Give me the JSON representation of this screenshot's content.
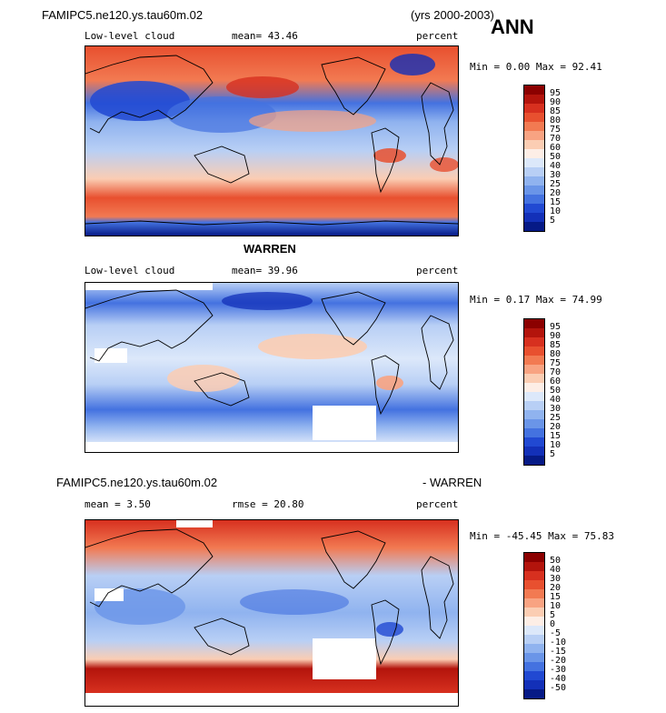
{
  "header": {
    "case_name": "FAMIPC5.ne120.ys.tau60m.02",
    "years": "(yrs 2000-2003)",
    "season": "ANN"
  },
  "panel1": {
    "variable": "Low-level cloud",
    "mean_label": "mean=  43.46",
    "units": "percent",
    "minmax": "Min =   0.00 Max =  92.41"
  },
  "panel2": {
    "title": "WARREN",
    "variable": "Low-level cloud",
    "mean_label": "mean=  39.96",
    "units": "percent",
    "minmax": "Min =   0.17 Max =  74.99"
  },
  "panel3": {
    "title_left": "FAMIPC5.ne120.ys.tau60m.02",
    "title_right": "- WARREN",
    "mean_label": "mean =   3.50",
    "rmse_label": "rmse =  20.80",
    "units": "percent",
    "minmax": "Min = -45.45 Max =  75.83"
  },
  "colorbar_abs": {
    "labels": [
      "95",
      "90",
      "85",
      "80",
      "75",
      "70",
      "60",
      "50",
      "40",
      "30",
      "25",
      "20",
      "15",
      "10",
      "5"
    ],
    "colors": [
      "#8b0000",
      "#b3140c",
      "#d7301f",
      "#e8502f",
      "#f27a52",
      "#f8a382",
      "#fbcdb3",
      "#fdeee6",
      "#dce8fa",
      "#b8cff5",
      "#90b3ef",
      "#6a95e8",
      "#4472e0",
      "#2149d2",
      "#1330b8",
      "#061a86"
    ]
  },
  "colorbar_diff": {
    "labels": [
      "50",
      "40",
      "30",
      "20",
      "15",
      "10",
      "5",
      "0",
      "-5",
      "-10",
      "-15",
      "-20",
      "-30",
      "-40",
      "-50"
    ],
    "colors": [
      "#8b0000",
      "#b3140c",
      "#d7301f",
      "#e8502f",
      "#f27a52",
      "#f8a382",
      "#fbcdb3",
      "#fdeee6",
      "#dce8fa",
      "#b8cff5",
      "#90b3ef",
      "#6a95e8",
      "#4472e0",
      "#2149d2",
      "#1330b8",
      "#061a86"
    ]
  }
}
